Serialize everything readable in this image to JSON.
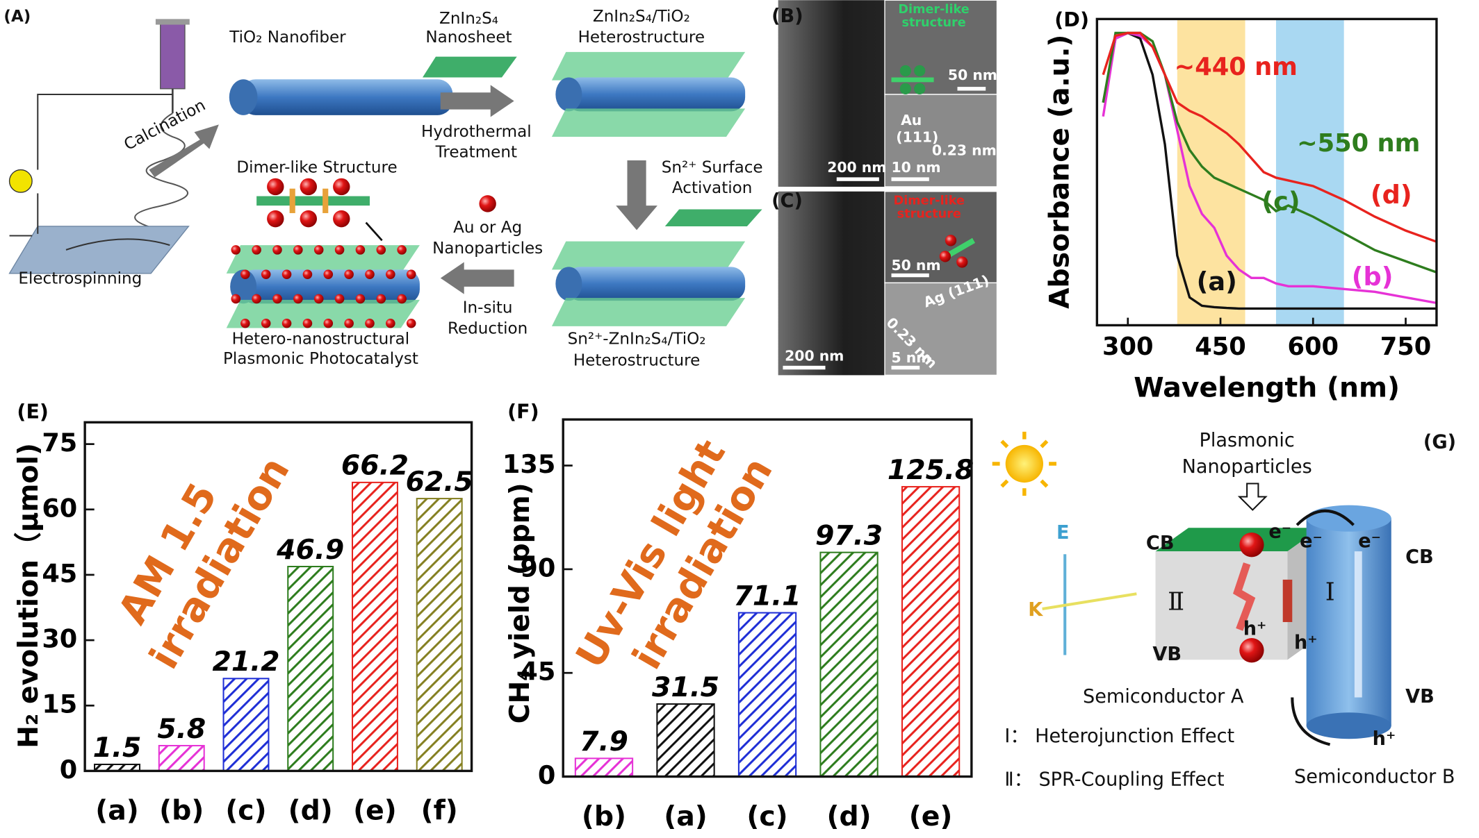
{
  "chart_data": [
    {
      "type": "line",
      "panel_label": "(D)",
      "xlabel": "Wavelength (nm)",
      "ylabel": "Absorbance (a.u.)",
      "x": [
        260,
        280,
        300,
        320,
        340,
        360,
        380,
        400,
        420,
        440,
        460,
        480,
        500,
        520,
        540,
        560,
        580,
        600,
        650,
        700,
        750,
        800
      ],
      "series": [
        {
          "name": "(a)",
          "color": "#111111",
          "values": [
            0.75,
            0.98,
            1.0,
            0.98,
            0.85,
            0.6,
            0.2,
            0.05,
            0.02,
            0.015,
            0.012,
            0.01,
            0.01,
            0.01,
            0.01,
            0.01,
            0.01,
            0.01,
            0.01,
            0.01,
            0.01,
            0.01
          ]
        },
        {
          "name": "(b)",
          "color": "#e632d6",
          "values": [
            0.7,
            0.98,
            1.0,
            0.99,
            0.95,
            0.85,
            0.65,
            0.45,
            0.35,
            0.3,
            0.2,
            0.15,
            0.12,
            0.12,
            0.1,
            0.09,
            0.09,
            0.09,
            0.08,
            0.07,
            0.05,
            0.03
          ]
        },
        {
          "name": "(c)",
          "color": "#2e7d1e",
          "values": [
            0.75,
            1.0,
            1.0,
            1.0,
            0.97,
            0.85,
            0.68,
            0.58,
            0.52,
            0.48,
            0.46,
            0.44,
            0.42,
            0.4,
            0.36,
            0.38,
            0.36,
            0.34,
            0.28,
            0.22,
            0.18,
            0.14
          ]
        },
        {
          "name": "(d)",
          "color": "#e8231e",
          "values": [
            0.85,
            0.99,
            1.0,
            1.0,
            0.95,
            0.85,
            0.75,
            0.72,
            0.7,
            0.67,
            0.64,
            0.6,
            0.55,
            0.5,
            0.48,
            0.47,
            0.46,
            0.45,
            0.4,
            0.34,
            0.29,
            0.25
          ]
        }
      ],
      "xlim": [
        250,
        800
      ],
      "xticks": [
        300,
        450,
        600,
        750
      ],
      "ylim": [
        -0.05,
        1.05
      ],
      "bands": [
        {
          "range": [
            380,
            490
          ],
          "color": "#fde3a0"
        },
        {
          "range": [
            540,
            650
          ],
          "color": "#a9d8f2"
        }
      ],
      "annotations": [
        {
          "text": "~440 nm",
          "color": "#e8231e"
        },
        {
          "text": "~550 nm",
          "color": "#2e7d1e"
        }
      ]
    },
    {
      "type": "bar",
      "panel_label": "(E)",
      "ylabel": "H₂ evolution（μmol)",
      "categories": [
        "(a)",
        "(b)",
        "(c)",
        "(d)",
        "(e)",
        "(f)"
      ],
      "values": [
        1.5,
        5.8,
        21.2,
        46.9,
        66.2,
        62.5
      ],
      "colors": [
        "#111111",
        "#e632d6",
        "#1f2fd6",
        "#2e7d1e",
        "#e8231e",
        "#858022"
      ],
      "ylim": [
        0,
        80
      ],
      "yticks": [
        0,
        15,
        30,
        45,
        60,
        75
      ],
      "annotation": [
        "AM 1.5",
        "irradiation"
      ],
      "annotation_color": "#e06a1c"
    },
    {
      "type": "bar",
      "panel_label": "(F)",
      "ylabel": "CH₄ yield (ppm)",
      "categories": [
        "(b)",
        "(a)",
        "(c)",
        "(d)",
        "(e)"
      ],
      "values": [
        7.9,
        31.5,
        71.1,
        97.3,
        125.8
      ],
      "colors": [
        "#e632d6",
        "#111111",
        "#1f2fd6",
        "#2e7d1e",
        "#e8231e"
      ],
      "ylim": [
        0,
        155
      ],
      "yticks": [
        0,
        45,
        90,
        135
      ],
      "annotation": [
        "Uv-Vis light",
        "irradiation"
      ],
      "annotation_color": "#e06a1c"
    }
  ],
  "figure": {
    "panel_a": [
      "(A)",
      "TiO₂ Nanofiber",
      "ZnIn₂S₄",
      "Nanosheet",
      "ZnIn₂S₄/TiO₂",
      "Heterostructure",
      "Calcination",
      "Hydrothermal",
      "Treatment",
      "Dimer-like Structure",
      "Sn²⁺ Surface",
      "Activation",
      "Au or Ag",
      "Nanoparticles",
      "In-situ",
      "Reduction",
      "Electrospinning",
      "Hetero-nanostructural",
      "Plasmonic Photocatalyst",
      "Sn²⁺-ZnIn₂S₄/TiO₂",
      "Heterostructure"
    ],
    "panel_b": [
      "(B)",
      "Dimer-like",
      "structure",
      "50 nm",
      "Au",
      "(111)",
      "0.23 nm",
      "200 nm",
      "10 nm"
    ],
    "panel_c": [
      "(C)",
      "Dimer-like",
      "structure",
      "50 nm",
      "Ag (111)",
      "0.23 nm",
      "200 nm",
      "5 nm"
    ],
    "panel_g": [
      "(G)",
      "Plasmonic",
      "Nanoparticles",
      "CB",
      "CB",
      "VB",
      "VB",
      "E",
      "K",
      "Ⅱ",
      "Ⅰ",
      "e⁻",
      "e⁻",
      "e⁻",
      "h⁺",
      "h⁺",
      "h⁺",
      "Semiconductor A",
      "Semiconductor B",
      "Ⅰ：  Heterojunction Effect",
      "Ⅱ：  SPR-Coupling Effect"
    ]
  }
}
